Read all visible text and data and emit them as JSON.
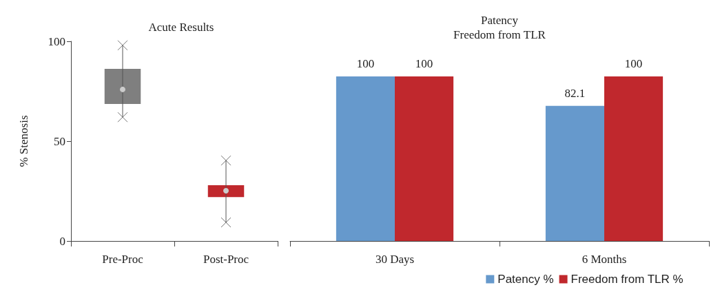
{
  "chart_data": [
    {
      "type": "box",
      "title": "Acute Results",
      "ylabel": "% Stenosis",
      "categories": [
        "Pre-Proc",
        "Post-Proc"
      ],
      "boxes": [
        {
          "low": 62,
          "q1": 68.6,
          "median": 75.9,
          "q3": 86.2,
          "high": 98
        },
        {
          "low": 9.3,
          "q1": 22,
          "median": 25.2,
          "q3": 27.9,
          "high": 40.3
        }
      ],
      "colors": [
        "#7f7f7f",
        "#c0282d"
      ],
      "series": [
        {
          "type": "scatter",
          "marker": "cross",
          "color": "#555555",
          "x": [
            "Pre-Proc",
            "Pre-Proc",
            "Post-Proc",
            "Post-Proc"
          ],
          "values": [
            98,
            62,
            40.3,
            9.3
          ]
        }
      ],
      "ylim": [
        0,
        100
      ],
      "yticks": [
        0,
        50,
        100
      ],
      "grid": false,
      "legend": false
    },
    {
      "type": "bar",
      "title": "Patency",
      "subtitle": "Freedom from TLR",
      "categories": [
        "30 Days",
        "6 Months"
      ],
      "series": [
        {
          "name": "Patency %",
          "color": "#6699cc",
          "values": [
            100,
            82.1
          ]
        },
        {
          "name": "Freedom from TLR %",
          "color": "#c0282d",
          "values": [
            100,
            100
          ]
        }
      ],
      "tick_labels": "x",
      "data_labels": true,
      "grid": false,
      "legend": "bottom right"
    }
  ]
}
